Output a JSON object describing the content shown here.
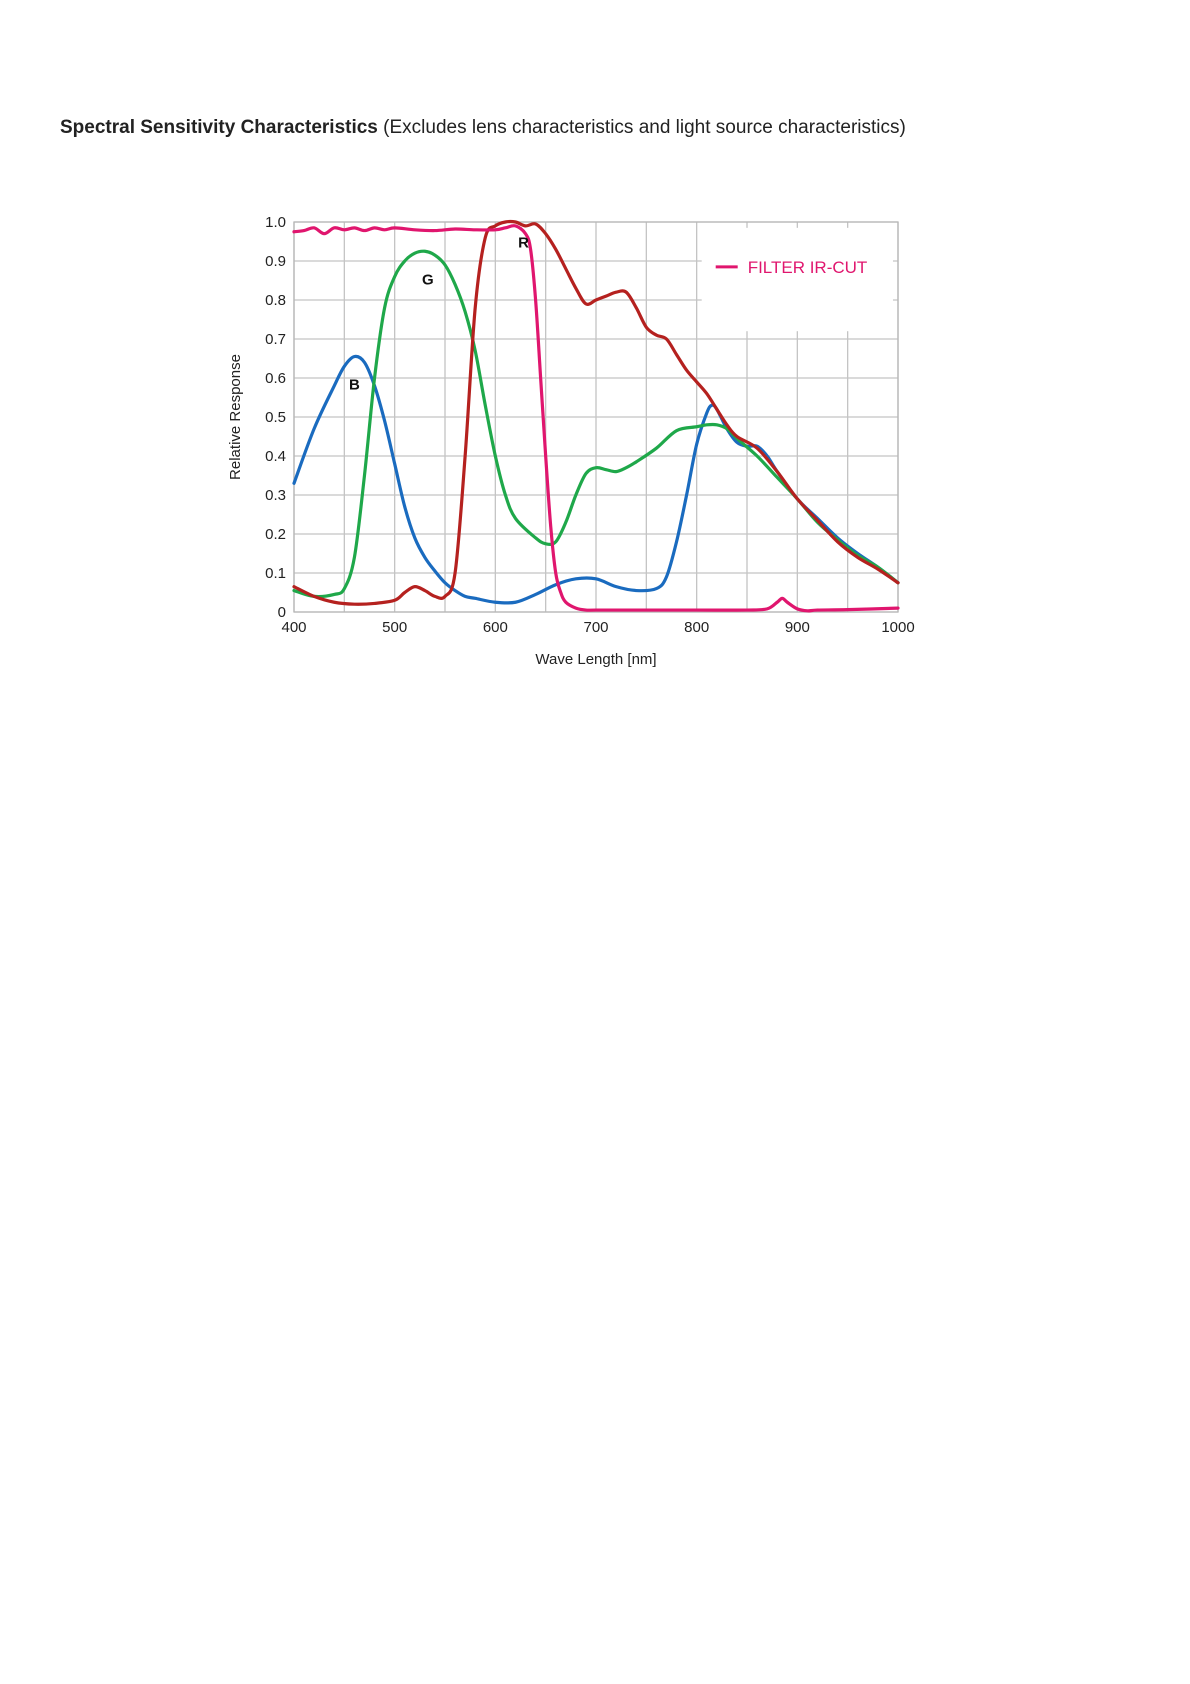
{
  "document": {
    "title_bold": "Spectral Sensitivity Characteristics",
    "title_rest": "(Excludes lens characteristics and light source characteristics)"
  },
  "chart_data": {
    "type": "line",
    "title": "",
    "xlabel": "Wave Length [nm]",
    "ylabel": "Relative Response",
    "xlim": [
      400,
      1000
    ],
    "ylim": [
      0,
      1.0
    ],
    "x_ticks": [
      400,
      500,
      600,
      700,
      800,
      900,
      1000
    ],
    "x_tick_labels": [
      "400",
      "500",
      "600",
      "700",
      "800",
      "900",
      "1000"
    ],
    "y_ticks": [
      0,
      0.1,
      0.2,
      0.3,
      0.4,
      0.5,
      0.6,
      0.7,
      0.8,
      0.9,
      1.0
    ],
    "y_tick_labels": [
      "0",
      "0.1",
      "0.2",
      "0.3",
      "0.4",
      "0.5",
      "0.6",
      "0.7",
      "0.8",
      "0.9",
      "1.0"
    ],
    "grid": true,
    "legend": {
      "position": "top-right",
      "entries": [
        {
          "label": "FILTER IR-CUT",
          "color": "#e0166e"
        }
      ]
    },
    "series": [
      {
        "name": "B",
        "color": "#1a6bbf",
        "x": [
          400,
          420,
          440,
          450,
          460,
          470,
          480,
          490,
          500,
          510,
          520,
          530,
          540,
          550,
          560,
          570,
          580,
          600,
          620,
          640,
          660,
          680,
          700,
          720,
          740,
          760,
          770,
          780,
          790,
          800,
          810,
          815,
          820,
          830,
          840,
          850,
          860,
          870,
          880,
          900,
          920,
          940,
          960,
          980,
          1000
        ],
        "y": [
          0.33,
          0.47,
          0.58,
          0.63,
          0.655,
          0.64,
          0.58,
          0.49,
          0.38,
          0.27,
          0.19,
          0.14,
          0.105,
          0.075,
          0.055,
          0.04,
          0.035,
          0.025,
          0.025,
          0.045,
          0.07,
          0.085,
          0.085,
          0.065,
          0.055,
          0.06,
          0.09,
          0.18,
          0.3,
          0.43,
          0.51,
          0.53,
          0.52,
          0.47,
          0.435,
          0.425,
          0.425,
          0.4,
          0.36,
          0.29,
          0.24,
          0.19,
          0.15,
          0.115,
          0.075
        ]
      },
      {
        "name": "G",
        "color": "#1fa84a",
        "x": [
          400,
          420,
          440,
          450,
          460,
          470,
          480,
          490,
          500,
          510,
          520,
          530,
          540,
          550,
          560,
          570,
          580,
          590,
          600,
          610,
          620,
          640,
          650,
          660,
          670,
          680,
          690,
          700,
          710,
          720,
          730,
          740,
          760,
          780,
          800,
          810,
          820,
          830,
          840,
          860,
          880,
          900,
          920,
          940,
          960,
          980,
          1000
        ],
        "y": [
          0.055,
          0.04,
          0.045,
          0.06,
          0.14,
          0.35,
          0.6,
          0.78,
          0.86,
          0.9,
          0.92,
          0.925,
          0.915,
          0.89,
          0.84,
          0.77,
          0.67,
          0.53,
          0.4,
          0.3,
          0.24,
          0.19,
          0.175,
          0.18,
          0.23,
          0.3,
          0.355,
          0.37,
          0.365,
          0.36,
          0.37,
          0.385,
          0.42,
          0.465,
          0.475,
          0.48,
          0.48,
          0.47,
          0.445,
          0.4,
          0.345,
          0.29,
          0.23,
          0.185,
          0.145,
          0.115,
          0.075
        ]
      },
      {
        "name": "R",
        "color": "#b5211f",
        "x": [
          400,
          420,
          440,
          460,
          480,
          500,
          510,
          520,
          530,
          540,
          550,
          560,
          570,
          580,
          590,
          600,
          610,
          620,
          630,
          640,
          650,
          660,
          670,
          680,
          690,
          700,
          710,
          720,
          730,
          740,
          750,
          760,
          770,
          780,
          790,
          800,
          810,
          820,
          830,
          840,
          860,
          880,
          900,
          920,
          940,
          960,
          980,
          1000
        ],
        "y": [
          0.065,
          0.04,
          0.025,
          0.02,
          0.022,
          0.03,
          0.05,
          0.065,
          0.055,
          0.04,
          0.04,
          0.1,
          0.4,
          0.78,
          0.96,
          0.99,
          1.0,
          1.0,
          0.99,
          0.995,
          0.97,
          0.93,
          0.88,
          0.83,
          0.79,
          0.8,
          0.81,
          0.82,
          0.82,
          0.78,
          0.73,
          0.71,
          0.7,
          0.66,
          0.62,
          0.59,
          0.56,
          0.52,
          0.48,
          0.45,
          0.42,
          0.36,
          0.29,
          0.235,
          0.18,
          0.14,
          0.11,
          0.075
        ]
      },
      {
        "name": "",
        "color": "#e0166e",
        "x": [
          400,
          410,
          420,
          430,
          440,
          450,
          460,
          470,
          480,
          490,
          500,
          520,
          540,
          560,
          580,
          600,
          610,
          620,
          630,
          635,
          640,
          645,
          650,
          655,
          660,
          665,
          670,
          680,
          690,
          700,
          750,
          800,
          850,
          870,
          880,
          885,
          890,
          900,
          910,
          920,
          950,
          1000
        ],
        "y": [
          0.975,
          0.978,
          0.985,
          0.97,
          0.985,
          0.98,
          0.985,
          0.978,
          0.985,
          0.98,
          0.985,
          0.98,
          0.978,
          0.982,
          0.98,
          0.98,
          0.985,
          0.99,
          0.97,
          0.93,
          0.8,
          0.6,
          0.4,
          0.22,
          0.1,
          0.05,
          0.025,
          0.01,
          0.005,
          0.005,
          0.005,
          0.005,
          0.005,
          0.008,
          0.025,
          0.035,
          0.025,
          0.008,
          0.003,
          0.005,
          0.006,
          0.01
        ]
      }
    ],
    "annotations": [
      {
        "text": "B",
        "x": 460,
        "y": 0.57
      },
      {
        "text": "G",
        "x": 533,
        "y": 0.84
      },
      {
        "text": "R",
        "x": 628,
        "y": 0.935
      }
    ]
  }
}
